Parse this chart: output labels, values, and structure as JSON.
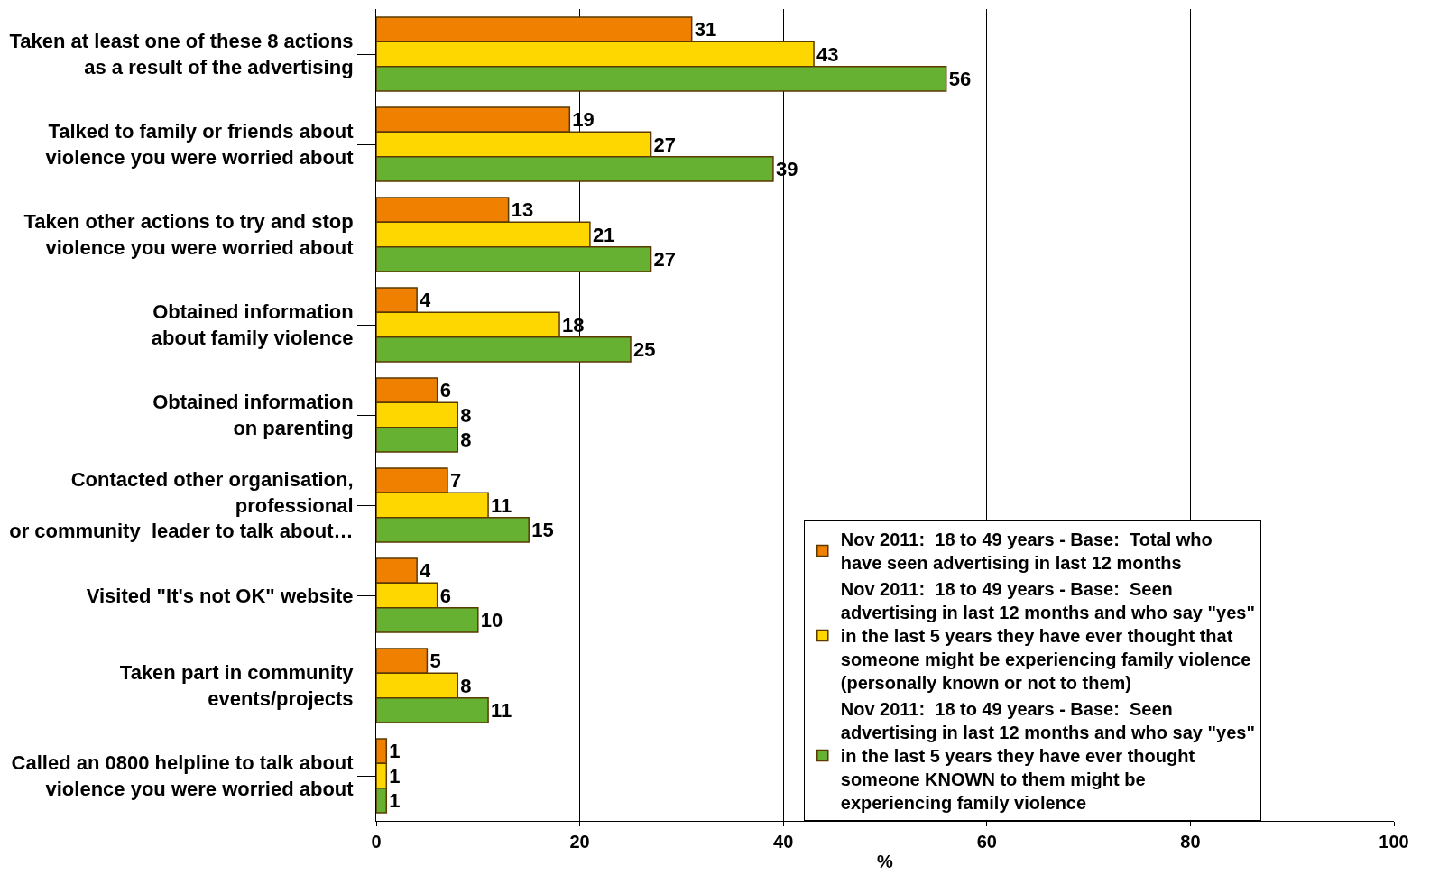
{
  "chart_data": {
    "type": "bar",
    "orientation": "horizontal",
    "xlabel": "%",
    "categories": [
      "Taken at least one of these 8 actions\nas a result of the advertising",
      "Talked to family or friends about\nviolence you were worried about",
      "Taken other actions to try and stop\nviolence you were worried about",
      "Obtained information\nabout family violence",
      "Obtained information\non parenting",
      "Contacted other organisation,\nprofessional\nor community  leader to talk about…",
      "Visited \"It's not OK\" website",
      "Taken part in community\nevents/projects",
      "Called an 0800 helpline to talk about\nviolence you were worried about"
    ],
    "series": [
      {
        "name": "Nov 2011:  18 to 49 years - Base:  Total who\nhave seen advertising in last 12 months",
        "color": "#f08000",
        "values": [
          31,
          19,
          13,
          4,
          6,
          7,
          4,
          5,
          1
        ]
      },
      {
        "name": "Nov 2011:  18 to 49 years - Base:  Seen\nadvertising in last 12 months and who say \"yes\"\nin the last 5 years they have ever thought that\nsomeone might be experiencing family violence\n(personally known or not to them)",
        "color": "#ffd700",
        "values": [
          43,
          27,
          21,
          18,
          8,
          11,
          6,
          8,
          1
        ]
      },
      {
        "name": "Nov 2011:  18 to 49 years - Base:  Seen\nadvertising in last 12 months and who say \"yes\"\nin the last 5 years they have ever thought\nsomeone KNOWN to them might be\nexperiencing family violence",
        "color": "#66b032",
        "values": [
          56,
          39,
          27,
          25,
          8,
          15,
          10,
          11,
          1
        ]
      }
    ],
    "xlim": [
      0,
      100
    ],
    "xticks": [
      0,
      20,
      40,
      60,
      80,
      100
    ],
    "grid": "x",
    "legend": "bottom right",
    "data_labels": true
  }
}
